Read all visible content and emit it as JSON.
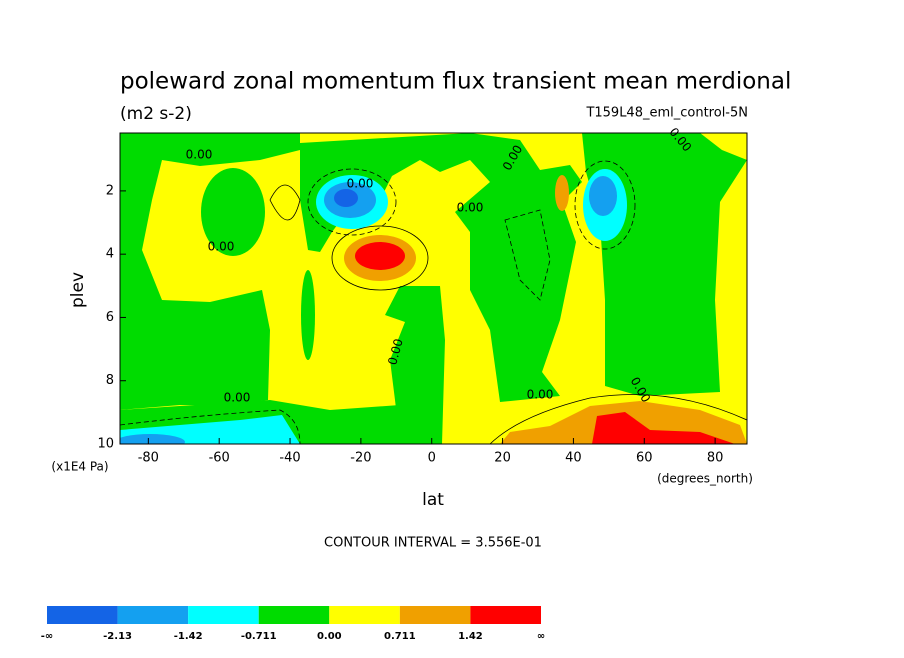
{
  "chart_data": {
    "type": "contour",
    "title": "poleward zonal momentum flux transient mean merdional",
    "units": "(m2 s-2)",
    "dataset": "T159L48_eml_control-5N",
    "xlabel": "lat",
    "xunits": "(degrees_north)",
    "ylabel": "plev",
    "yunits": "(x1E4 Pa)",
    "xlim": [
      -88,
      89
    ],
    "xticks": [
      -80,
      -60,
      -40,
      -20,
      0,
      20,
      40,
      60,
      80
    ],
    "ylim": [
      10,
      0.17
    ],
    "yticks": [
      2,
      4,
      6,
      8,
      10
    ],
    "contour_interval_text": "CONTOUR INTERVAL = 3.556E-01",
    "contour_labels": [
      "0.00",
      "0.00",
      "0.00",
      "0.00",
      "0.00",
      "0.00",
      "0.00",
      "0.00",
      "0.00",
      "0.00"
    ],
    "colorbar": {
      "colors": [
        "#1464e6",
        "#14a0f0",
        "#00ffff",
        "#00dc00",
        "#ffff00",
        "#f0a000",
        "#ff0000"
      ],
      "labels": [
        "-∞",
        -2.13,
        -1.42,
        -0.711,
        {
          "value": 0,
          "label": "0.00"
        },
        0.711,
        1.42,
        "∞"
      ]
    }
  }
}
